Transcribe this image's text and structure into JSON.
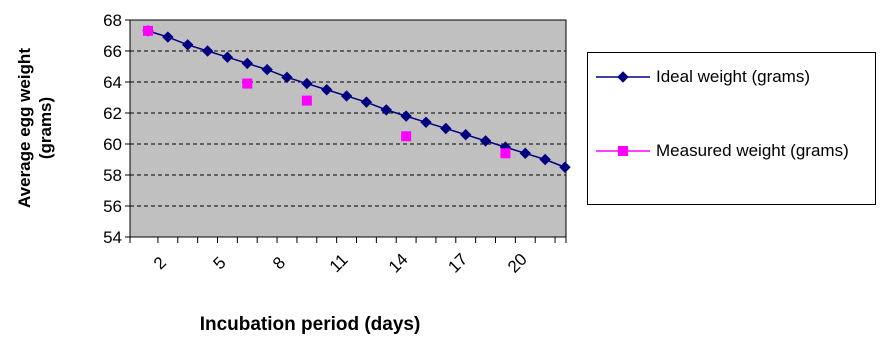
{
  "chart_data": {
    "type": "line",
    "x_label": "Incubation period (days)",
    "y_label": "Average egg weight (grams)",
    "categories": [
      null,
      "2",
      null,
      null,
      "5",
      null,
      null,
      "8",
      null,
      null,
      "11",
      null,
      null,
      "14",
      null,
      null,
      "17",
      null,
      null,
      "20",
      null,
      null
    ],
    "series": [
      {
        "name": "Ideal weight (grams)",
        "color": "#000080",
        "marker": "diamond",
        "line": true,
        "values": [
          67.3,
          66.9,
          66.4,
          66.0,
          65.6,
          65.2,
          64.8,
          64.3,
          63.9,
          63.5,
          63.1,
          62.7,
          62.2,
          61.8,
          61.4,
          61.0,
          60.6,
          60.2,
          59.8,
          59.4,
          59.0,
          58.5
        ]
      },
      {
        "name": "Measured weight (grams)",
        "color": "#ff00ff",
        "marker": "square",
        "line": false,
        "values": [
          67.3,
          null,
          null,
          null,
          null,
          63.9,
          null,
          null,
          62.8,
          null,
          null,
          null,
          null,
          60.5,
          null,
          null,
          null,
          null,
          59.4,
          null,
          null,
          null
        ]
      }
    ],
    "ylim": [
      54,
      68
    ],
    "yticks": [
      54,
      56,
      58,
      60,
      62,
      64,
      66,
      68
    ],
    "grid": true,
    "legend": "right"
  }
}
